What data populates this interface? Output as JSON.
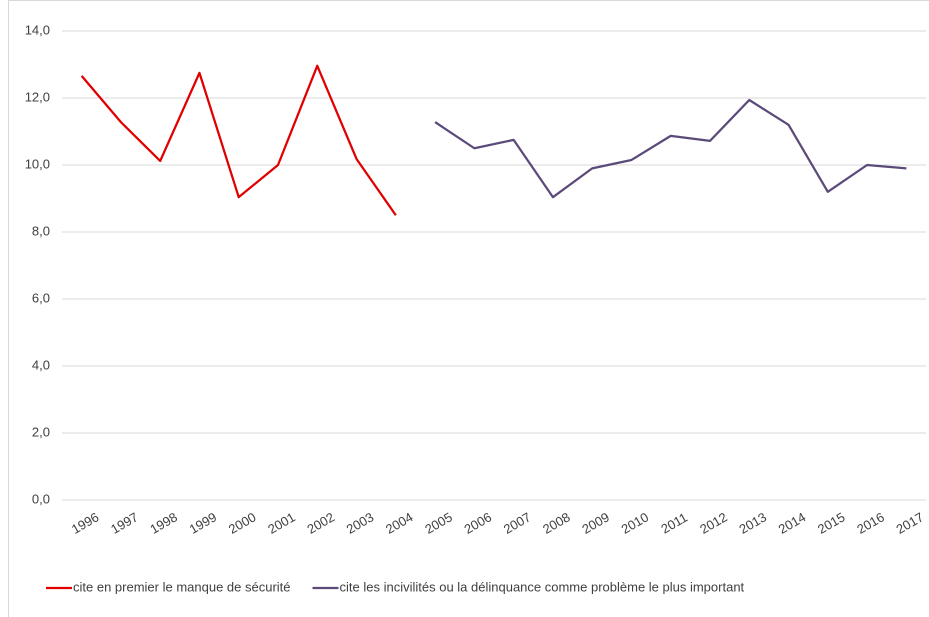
{
  "chart_data": {
    "type": "line",
    "categories": [
      "1996",
      "1997",
      "1998",
      "1999",
      "2000",
      "2001",
      "2002",
      "2003",
      "2004",
      "2005",
      "2006",
      "2007",
      "2008",
      "2009",
      "2010",
      "2011",
      "2012",
      "2013",
      "2014",
      "2015",
      "2016",
      "2017"
    ],
    "series": [
      {
        "name": "cite en premier le manque de sécurité",
        "color": "#e00000",
        "values": [
          12.66,
          11.28,
          10.12,
          12.75,
          9.04,
          10.0,
          12.96,
          10.18,
          8.5,
          null,
          null,
          null,
          null,
          null,
          null,
          null,
          null,
          null,
          null,
          null,
          null,
          null
        ]
      },
      {
        "name": "cite les incivilités ou la délinquance comme problème le plus important",
        "color": "#5b4a7a",
        "values": [
          null,
          null,
          null,
          null,
          null,
          null,
          null,
          null,
          null,
          11.28,
          10.5,
          10.75,
          9.04,
          9.9,
          10.15,
          10.87,
          10.72,
          11.94,
          11.2,
          9.2,
          10.0,
          9.9
        ]
      }
    ],
    "ylim": [
      0,
      14
    ],
    "yticks": [
      {
        "value": 0,
        "label": "0,0"
      },
      {
        "value": 2,
        "label": "2,0"
      },
      {
        "value": 4,
        "label": "4,0"
      },
      {
        "value": 6,
        "label": "6,0"
      },
      {
        "value": 8,
        "label": "8,0"
      },
      {
        "value": 10,
        "label": "10,0"
      },
      {
        "value": 12,
        "label": "12,0"
      },
      {
        "value": 14,
        "label": "14,0"
      }
    ],
    "grid": true,
    "legend": "bottom"
  }
}
